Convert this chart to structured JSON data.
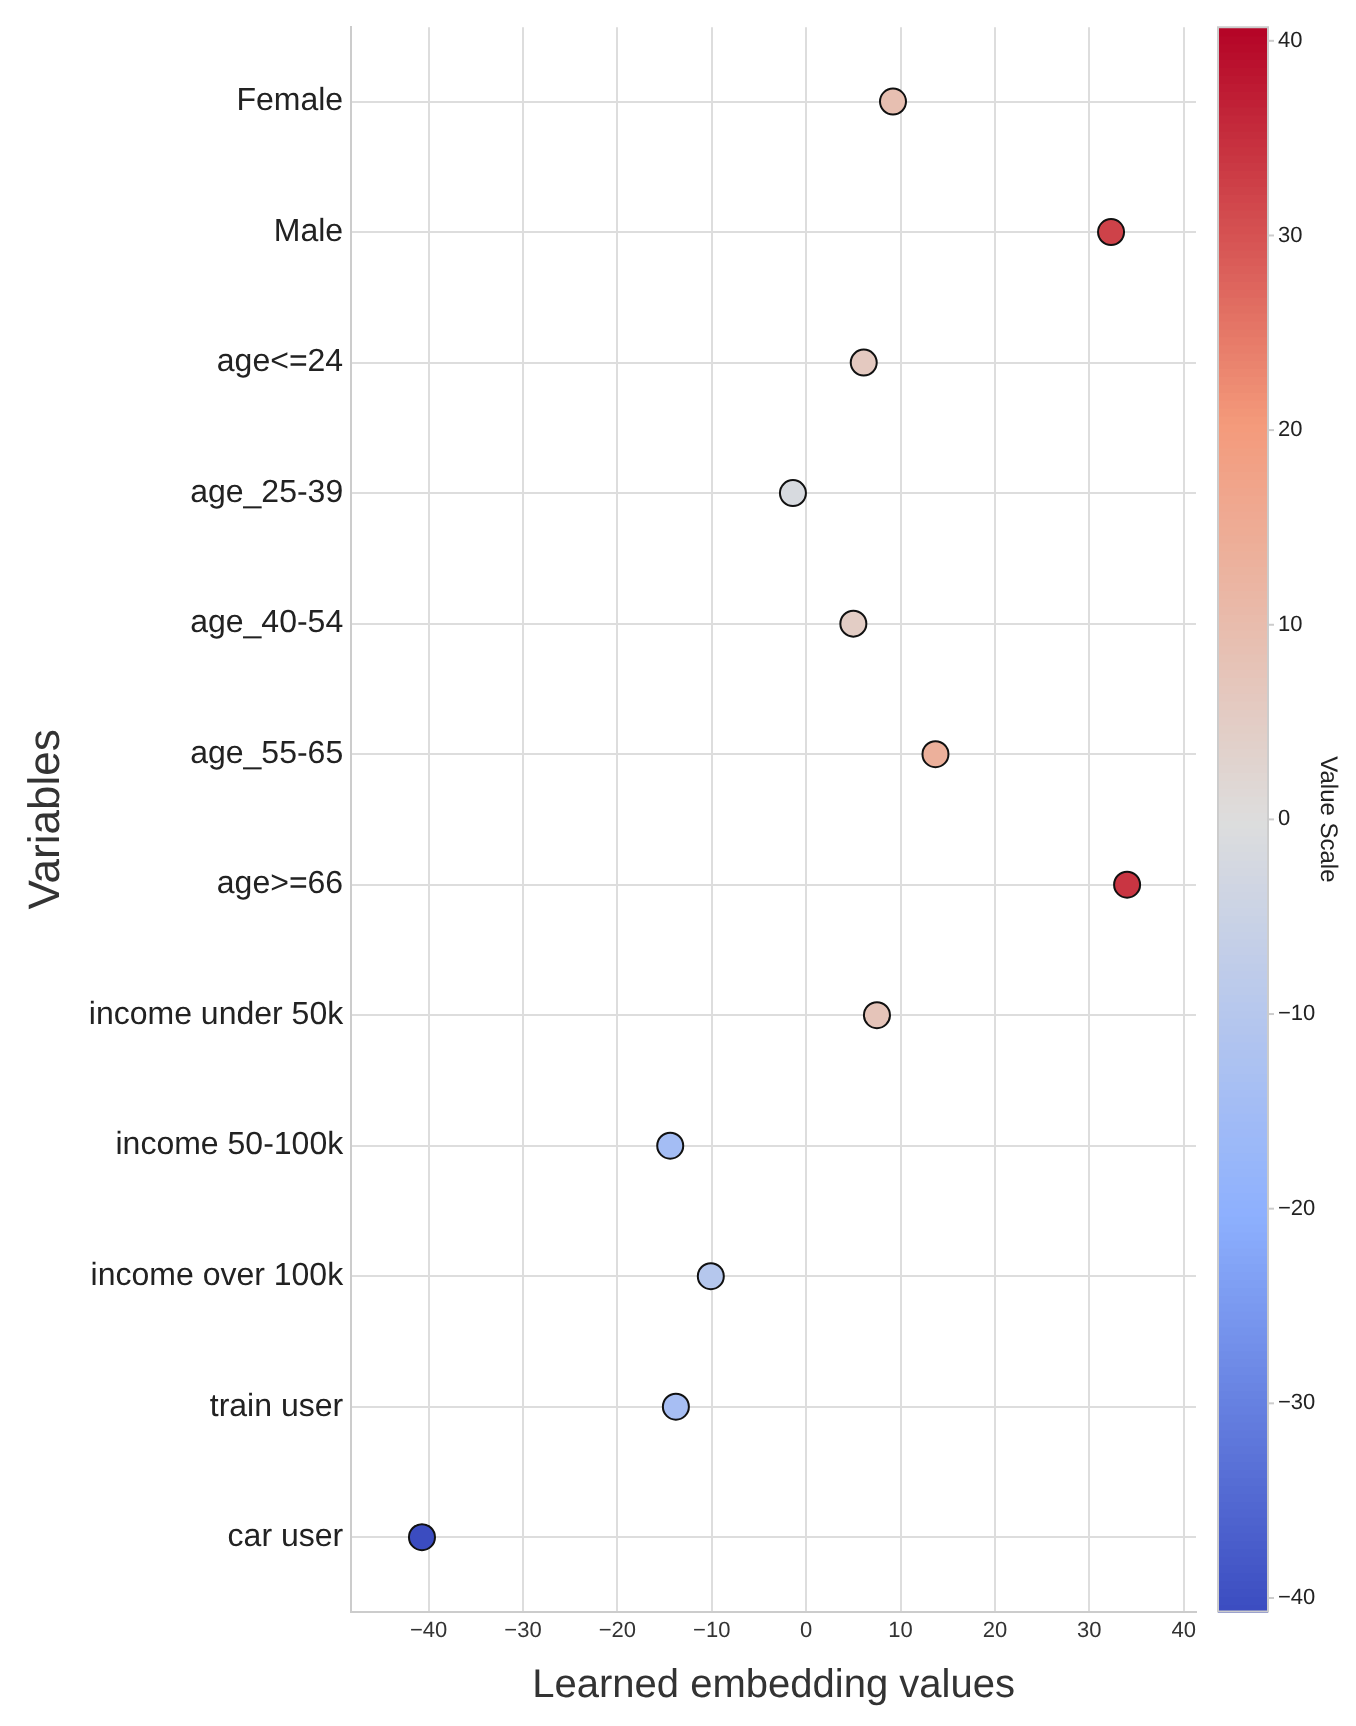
{
  "chart_data": {
    "type": "scatter",
    "orientation": "horizontal",
    "xlabel": "Learned embedding values",
    "ylabel": "Variables",
    "clabel": "Value Scale",
    "categories": [
      "Female",
      "Male",
      "age<=24",
      "age_25-39",
      "age_40-54",
      "age_55-65",
      "age>=66",
      "income under 50k",
      "income 50-100k",
      "income over 100k",
      "train user",
      "car user"
    ],
    "values": [
      9.2,
      32.3,
      6.1,
      -1.4,
      5.0,
      13.7,
      34.0,
      7.5,
      -14.4,
      -10.1,
      -13.8,
      -40.7
    ],
    "cvalues": [
      9.2,
      32.3,
      6.1,
      -1.4,
      5.0,
      13.7,
      34.0,
      7.5,
      -14.4,
      -10.1,
      -13.8,
      -40.7
    ],
    "xlim": [
      -48.2,
      41.3
    ],
    "xticks": [
      -40,
      -30,
      -20,
      -10,
      0,
      10,
      20,
      30,
      40
    ],
    "clim": [
      -40.7,
      40.7
    ],
    "cticks": [
      -40,
      -30,
      -20,
      -10,
      0,
      10,
      20,
      30,
      40
    ],
    "grid": true,
    "marker": "circle"
  }
}
